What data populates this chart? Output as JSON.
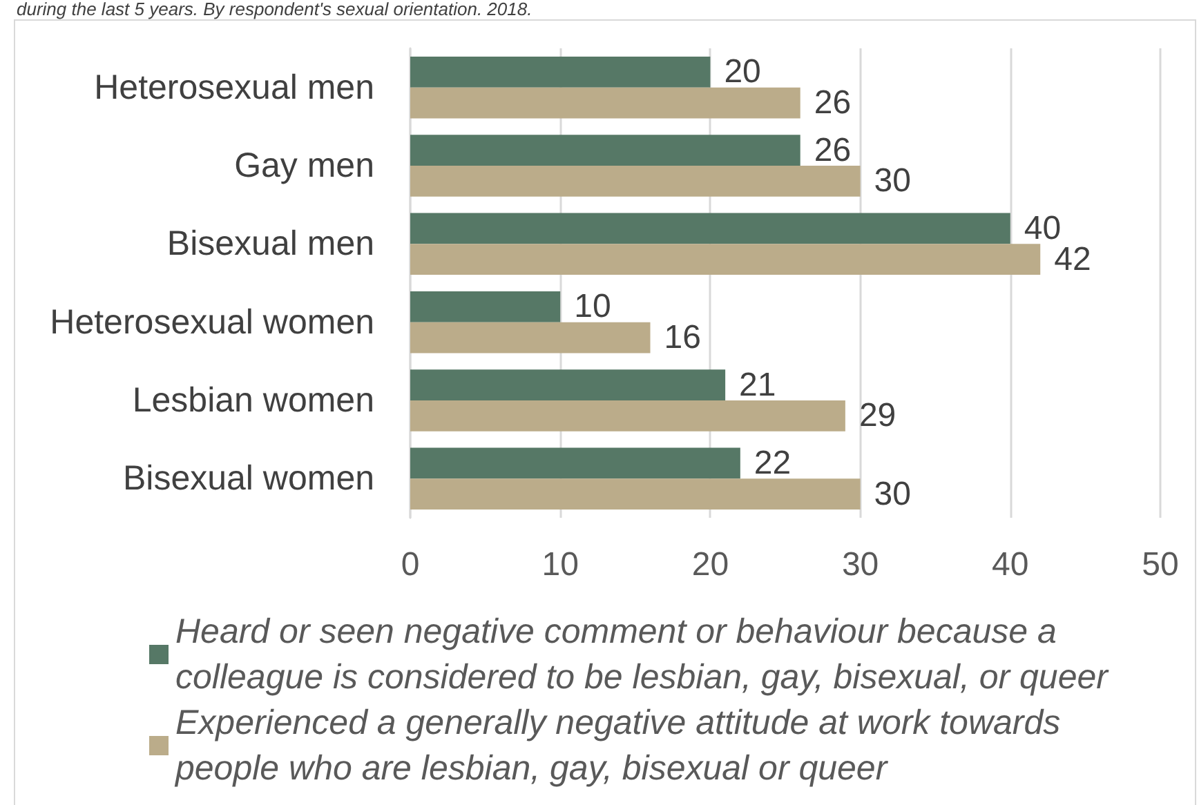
{
  "chart_data": {
    "type": "bar",
    "orientation": "horizontal",
    "title": "during the last 5 years. By respondent's sexual orientation. 2018.",
    "categories": [
      "Heterosexual men",
      "Gay men",
      "Bisexual men",
      "Heterosexual women",
      "Lesbian women",
      "Bisexual women"
    ],
    "series": [
      {
        "name": "Heard or seen negative comment or behaviour because a colleague is considered to be lesbian, gay, bisexual, or queer",
        "color": "#567866",
        "values": [
          20,
          26,
          40,
          10,
          21,
          22
        ]
      },
      {
        "name": "Experienced a generally negative attitude at work towards people who are lesbian, gay, bisexual or queer",
        "color": "#bbac8a",
        "values": [
          26,
          30,
          42,
          16,
          29,
          30
        ]
      }
    ],
    "xlim": [
      0,
      50
    ],
    "xticks": [
      0,
      10,
      20,
      30,
      40,
      50
    ],
    "grid": "x",
    "legend": "bottom",
    "data_labels": true
  }
}
